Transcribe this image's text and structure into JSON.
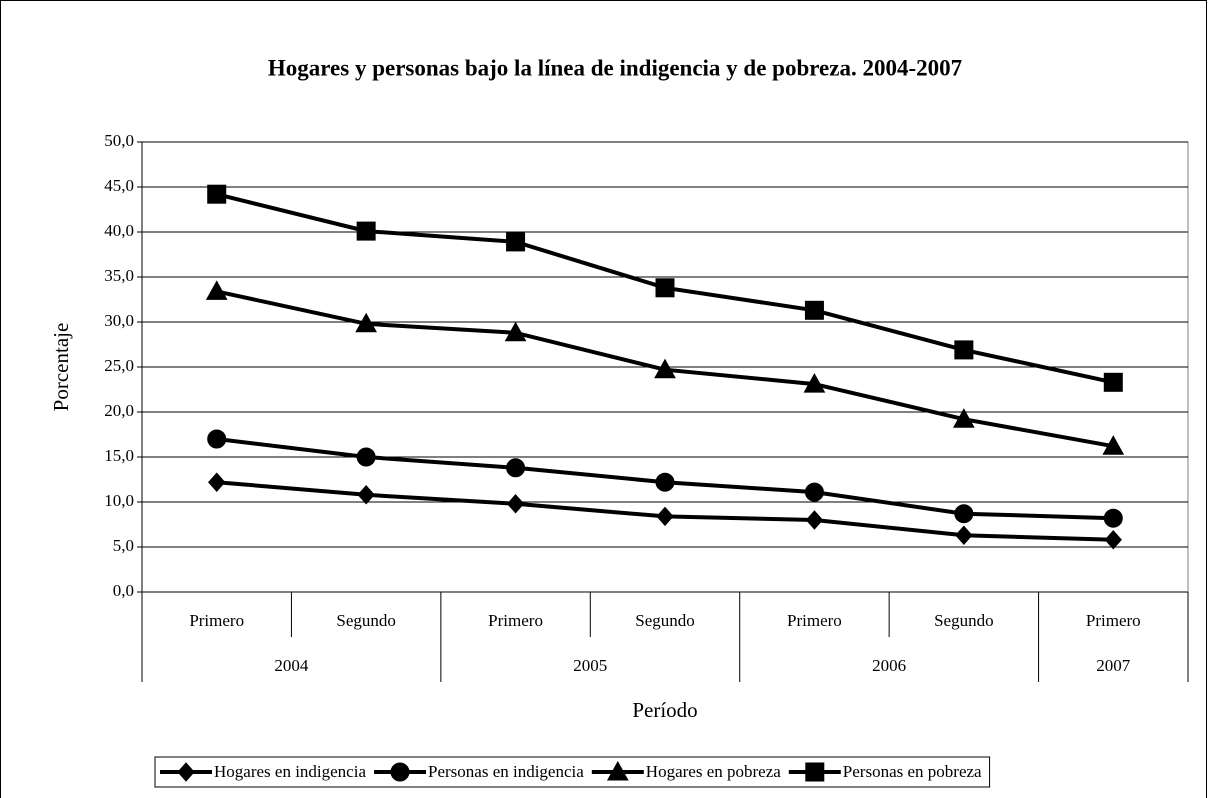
{
  "chart_data": {
    "type": "line",
    "title": "Hogares y personas bajo la línea de indigencia y de pobreza. 2004-2007",
    "x_label": "Período",
    "y_label": "Porcentaje",
    "category_groups": [
      {
        "label": "2004",
        "categories": [
          "Primero",
          "Segundo"
        ]
      },
      {
        "label": "2005",
        "categories": [
          "Primero",
          "Segundo"
        ]
      },
      {
        "label": "2006",
        "categories": [
          "Primero",
          "Segundo"
        ]
      },
      {
        "label": "2007",
        "categories": [
          "Primero"
        ]
      }
    ],
    "series": [
      {
        "name": "Hogares en indigencia",
        "color": "#000000",
        "marker": "diamond",
        "values": [
          12.2,
          10.8,
          9.8,
          8.4,
          8.0,
          6.3,
          5.8
        ]
      },
      {
        "name": "Personas en indigencia",
        "color": "#000000",
        "marker": "circle",
        "values": [
          17.0,
          15.0,
          13.8,
          12.2,
          11.1,
          8.7,
          8.2
        ]
      },
      {
        "name": "Hogares en pobreza",
        "color": "#000000",
        "marker": "triangle",
        "values": [
          33.4,
          29.8,
          28.8,
          24.7,
          23.1,
          19.2,
          16.2
        ]
      },
      {
        "name": "Personas en pobreza",
        "color": "#000000",
        "marker": "square",
        "values": [
          44.2,
          40.1,
          38.9,
          33.8,
          31.3,
          26.9,
          23.3
        ]
      }
    ],
    "ylim": [
      0,
      50
    ],
    "yticks": [
      {
        "value": 0,
        "label": "0,0"
      },
      {
        "value": 5,
        "label": "5,0"
      },
      {
        "value": 10,
        "label": "10,0"
      },
      {
        "value": 15,
        "label": "15,0"
      },
      {
        "value": 20,
        "label": "20,0"
      },
      {
        "value": 25,
        "label": "25,0"
      },
      {
        "value": 30,
        "label": "30,0"
      },
      {
        "value": 35,
        "label": "35,0"
      },
      {
        "value": 40,
        "label": "40,0"
      },
      {
        "value": 45,
        "label": "45,0"
      },
      {
        "value": 50,
        "label": "50,0"
      }
    ],
    "grid": true,
    "legend": "bottom"
  }
}
